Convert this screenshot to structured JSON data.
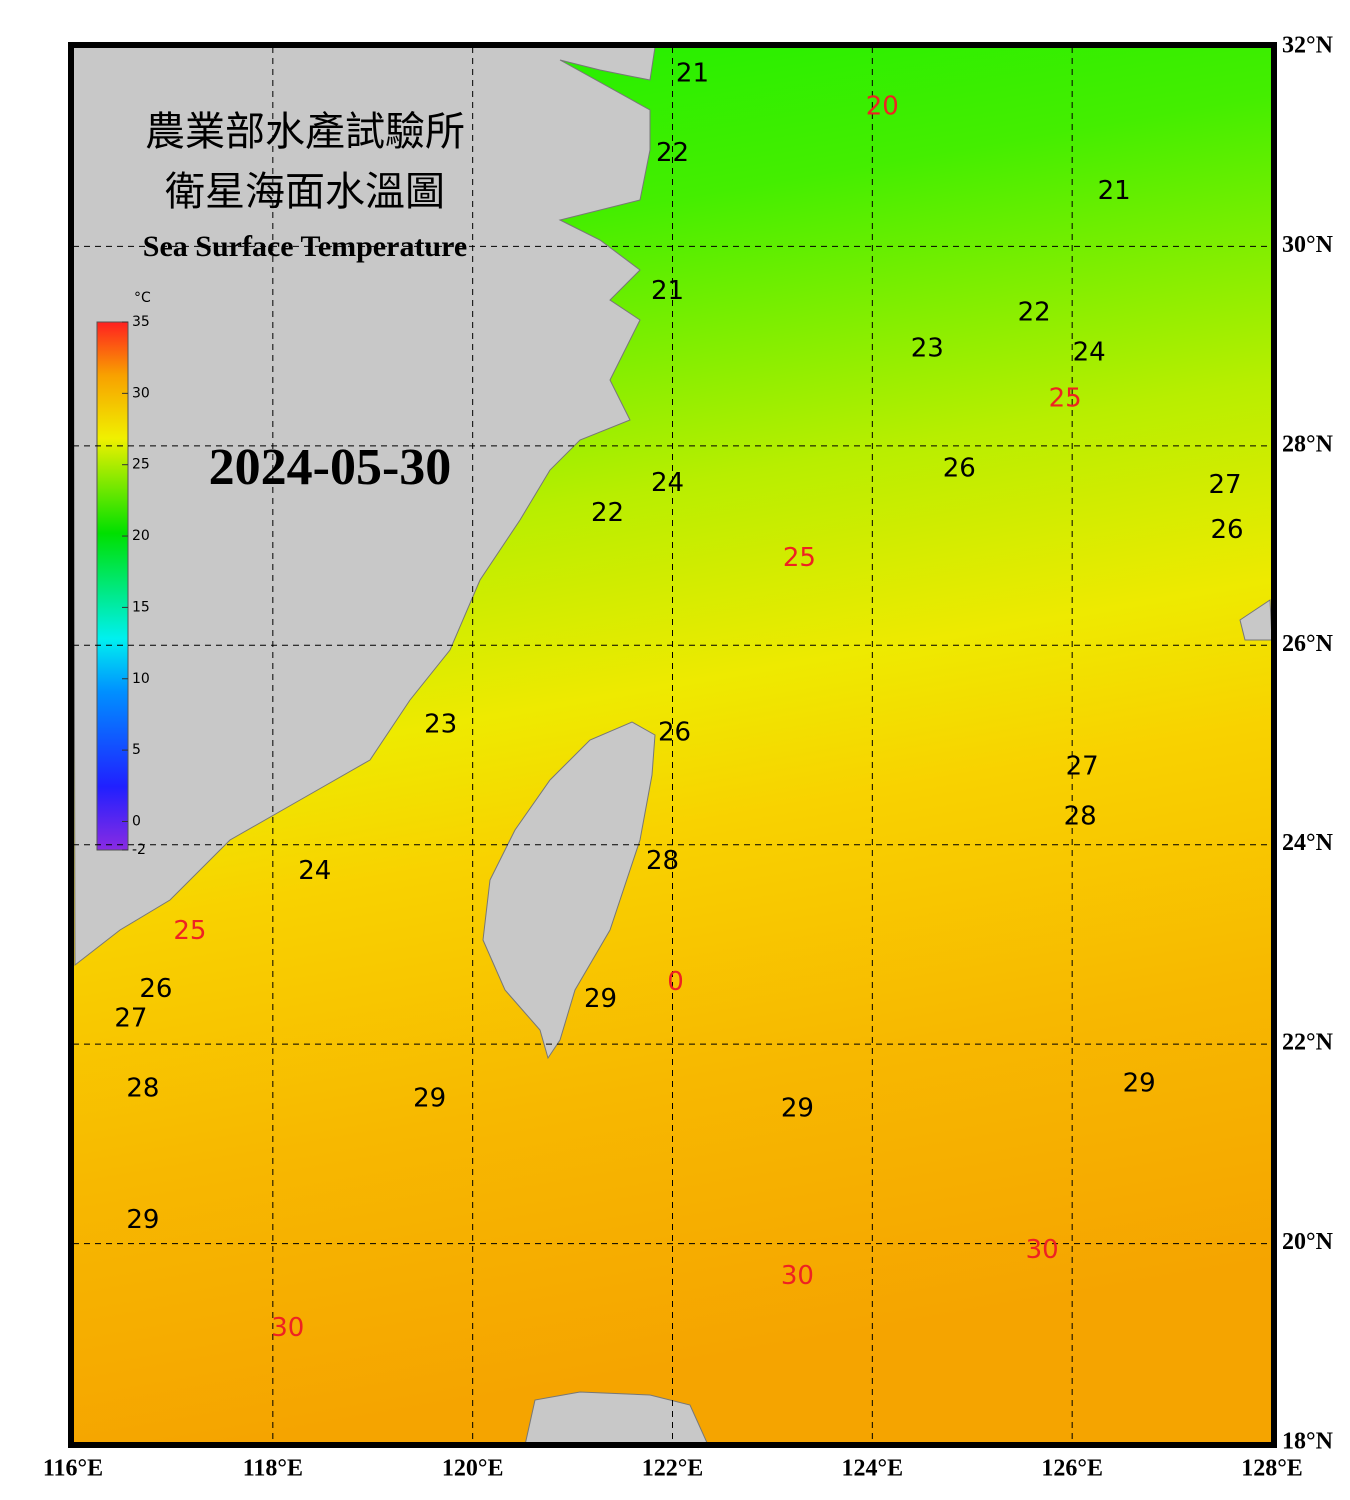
{
  "map": {
    "title": "農業部水產試驗所",
    "subtitle": "衛星海面水溫圖",
    "english_title": "Sea Surface Temperature",
    "date": "2024-05-30",
    "lon_range": [
      116,
      128
    ],
    "lat_range": [
      18,
      32
    ],
    "lon_ticks": [
      {
        "value": 116,
        "label": "116°E"
      },
      {
        "value": 118,
        "label": "118°E"
      },
      {
        "value": 120,
        "label": "120°E"
      },
      {
        "value": 122,
        "label": "122°E"
      },
      {
        "value": 124,
        "label": "124°E"
      },
      {
        "value": 126,
        "label": "126°E"
      },
      {
        "value": 128,
        "label": "128°E"
      }
    ],
    "lat_ticks": [
      {
        "value": 18,
        "label": "18°N"
      },
      {
        "value": 20,
        "label": "20°N"
      },
      {
        "value": 22,
        "label": "22°N"
      },
      {
        "value": 24,
        "label": "24°N"
      },
      {
        "value": 26,
        "label": "26°N"
      },
      {
        "value": 28,
        "label": "28°N"
      },
      {
        "value": 30,
        "label": "30°N"
      },
      {
        "value": 32,
        "label": "32°N"
      }
    ],
    "colorbar": {
      "unit": "°C",
      "range": [
        -2,
        35
      ],
      "ticks": [
        35,
        30,
        25,
        20,
        15,
        10,
        5,
        0,
        -2
      ]
    },
    "contour_labels": [
      {
        "text": "21",
        "lon": 122.2,
        "lat": 31.73,
        "color": "#000000"
      },
      {
        "text": "20",
        "lon": 124.1,
        "lat": 31.4,
        "color": "#ee2222"
      },
      {
        "text": "22",
        "lon": 122.0,
        "lat": 30.93,
        "color": "#000000"
      },
      {
        "text": "21",
        "lon": 126.42,
        "lat": 30.55,
        "color": "#000000"
      },
      {
        "text": "21",
        "lon": 121.95,
        "lat": 29.55,
        "color": "#000000"
      },
      {
        "text": "22",
        "lon": 125.62,
        "lat": 29.33,
        "color": "#000000"
      },
      {
        "text": "23",
        "lon": 124.55,
        "lat": 28.97,
        "color": "#000000"
      },
      {
        "text": "24",
        "lon": 126.17,
        "lat": 28.93,
        "color": "#000000"
      },
      {
        "text": "25",
        "lon": 125.93,
        "lat": 28.47,
        "color": "#ee2222"
      },
      {
        "text": "26",
        "lon": 124.87,
        "lat": 27.77,
        "color": "#000000"
      },
      {
        "text": "27",
        "lon": 127.53,
        "lat": 27.6,
        "color": "#000000"
      },
      {
        "text": "24",
        "lon": 121.95,
        "lat": 27.62,
        "color": "#000000"
      },
      {
        "text": "22",
        "lon": 121.35,
        "lat": 27.32,
        "color": "#000000"
      },
      {
        "text": "26",
        "lon": 127.55,
        "lat": 27.15,
        "color": "#000000"
      },
      {
        "text": "25",
        "lon": 123.27,
        "lat": 26.87,
        "color": "#ee2222"
      },
      {
        "text": "26",
        "lon": 122.02,
        "lat": 25.12,
        "color": "#000000"
      },
      {
        "text": "23",
        "lon": 119.68,
        "lat": 25.2,
        "color": "#000000"
      },
      {
        "text": "27",
        "lon": 126.1,
        "lat": 24.78,
        "color": "#000000"
      },
      {
        "text": "28",
        "lon": 126.08,
        "lat": 24.28,
        "color": "#000000"
      },
      {
        "text": "28",
        "lon": 121.9,
        "lat": 23.83,
        "color": "#000000"
      },
      {
        "text": "24",
        "lon": 118.42,
        "lat": 23.73,
        "color": "#000000"
      },
      {
        "text": "25",
        "lon": 117.17,
        "lat": 23.13,
        "color": "#ee2222"
      },
      {
        "text": "26",
        "lon": 116.83,
        "lat": 22.55,
        "color": "#000000"
      },
      {
        "text": "0",
        "lon": 122.03,
        "lat": 22.62,
        "color": "#ee2222"
      },
      {
        "text": "29",
        "lon": 121.28,
        "lat": 22.45,
        "color": "#000000"
      },
      {
        "text": "27",
        "lon": 116.58,
        "lat": 22.25,
        "color": "#000000"
      },
      {
        "text": "28",
        "lon": 116.7,
        "lat": 21.55,
        "color": "#000000"
      },
      {
        "text": "29",
        "lon": 119.57,
        "lat": 21.45,
        "color": "#000000"
      },
      {
        "text": "29",
        "lon": 123.25,
        "lat": 21.35,
        "color": "#000000"
      },
      {
        "text": "29",
        "lon": 126.67,
        "lat": 21.6,
        "color": "#000000"
      },
      {
        "text": "29",
        "lon": 116.7,
        "lat": 20.23,
        "color": "#000000"
      },
      {
        "text": "30",
        "lon": 125.7,
        "lat": 19.93,
        "color": "#ee2222"
      },
      {
        "text": "30",
        "lon": 123.25,
        "lat": 19.67,
        "color": "#ee2222"
      },
      {
        "text": "30",
        "lon": 118.15,
        "lat": 19.15,
        "color": "#ee2222"
      }
    ]
  }
}
